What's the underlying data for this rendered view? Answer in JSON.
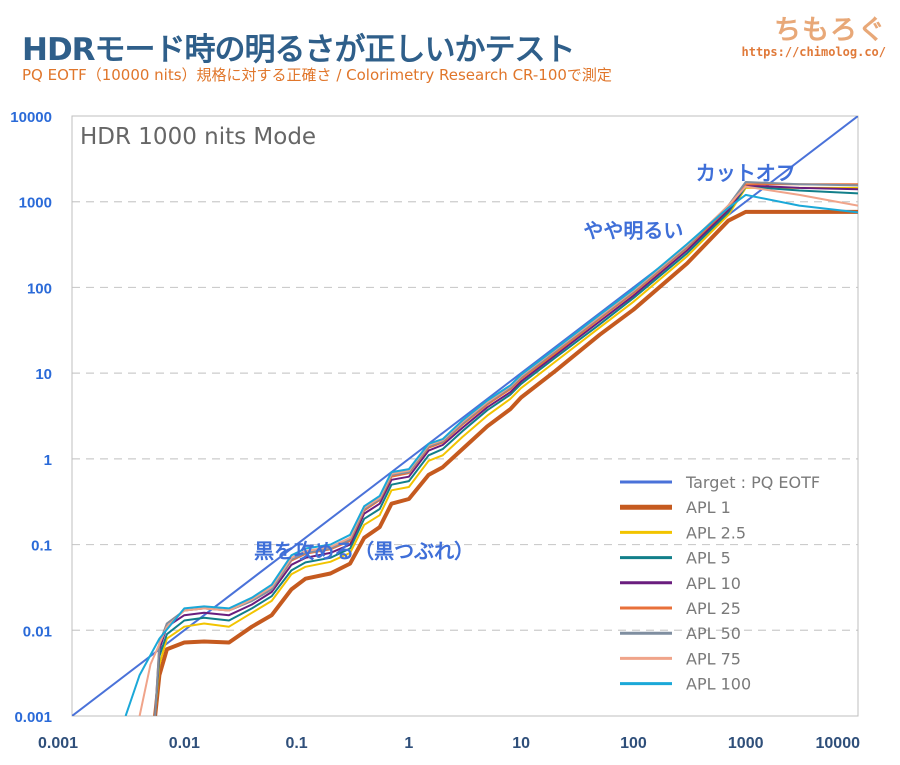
{
  "header": {
    "title": "HDRモード時の明るさが正しいかテスト",
    "subtitle": "PQ EOTF（10000 nits）規格に対する正確さ / Colorimetry Research CR-100で測定",
    "logo_text": "ちもろぐ",
    "logo_url": "https://chimolog.co/"
  },
  "chart_data": {
    "type": "line",
    "title": "HDR 1000 nits Mode",
    "xscale": "log",
    "yscale": "log",
    "xlim": [
      0.001,
      10000
    ],
    "ylim": [
      0.001,
      10000
    ],
    "x_ticks": [
      "0.001",
      "0.01",
      "0.1",
      "1",
      "10",
      "100",
      "1000",
      "10000"
    ],
    "y_ticks": [
      "0.001",
      "0.01",
      "0.1",
      "1",
      "10",
      "100",
      "1000",
      "10000"
    ],
    "grid": "horizontal dashed",
    "legend_position": "bottom-right",
    "annotations": [
      {
        "text": "カットオフ",
        "x": 1000,
        "y": 1800
      },
      {
        "text": "やや明るい",
        "x": 100,
        "y": 380
      },
      {
        "text": "黒を攻める（黒つぶれ）",
        "x": 0.4,
        "y": 0.07
      }
    ],
    "series": [
      {
        "name": "Target : PQ EOTF",
        "color": "#4a72d9",
        "width": 2,
        "points": [
          [
            0.001,
            0.001
          ],
          [
            10000,
            10000
          ]
        ]
      },
      {
        "name": "APL 1",
        "color": "#c55a1f",
        "width": 4,
        "points": [
          [
            0.0055,
            0.001
          ],
          [
            0.006,
            0.003
          ],
          [
            0.007,
            0.006
          ],
          [
            0.01,
            0.0072
          ],
          [
            0.015,
            0.0074
          ],
          [
            0.025,
            0.0072
          ],
          [
            0.04,
            0.011
          ],
          [
            0.06,
            0.015
          ],
          [
            0.09,
            0.03
          ],
          [
            0.12,
            0.04
          ],
          [
            0.2,
            0.046
          ],
          [
            0.3,
            0.06
          ],
          [
            0.4,
            0.12
          ],
          [
            0.55,
            0.16
          ],
          [
            0.7,
            0.3
          ],
          [
            1,
            0.34
          ],
          [
            1.5,
            0.65
          ],
          [
            2,
            0.8
          ],
          [
            3,
            1.3
          ],
          [
            5,
            2.4
          ],
          [
            8,
            3.8
          ],
          [
            10,
            5.2
          ],
          [
            20,
            10.5
          ],
          [
            50,
            28
          ],
          [
            100,
            55
          ],
          [
            300,
            190
          ],
          [
            700,
            600
          ],
          [
            1000,
            760
          ],
          [
            3000,
            760
          ],
          [
            10000,
            760
          ]
        ]
      },
      {
        "name": "APL 2.5",
        "color": "#f2c400",
        "width": 2,
        "points": [
          [
            0.0055,
            0.001
          ],
          [
            0.006,
            0.004
          ],
          [
            0.007,
            0.008
          ],
          [
            0.01,
            0.011
          ],
          [
            0.015,
            0.012
          ],
          [
            0.025,
            0.011
          ],
          [
            0.04,
            0.016
          ],
          [
            0.06,
            0.022
          ],
          [
            0.09,
            0.045
          ],
          [
            0.12,
            0.055
          ],
          [
            0.2,
            0.063
          ],
          [
            0.3,
            0.08
          ],
          [
            0.4,
            0.17
          ],
          [
            0.55,
            0.22
          ],
          [
            0.7,
            0.43
          ],
          [
            1,
            0.47
          ],
          [
            1.5,
            0.95
          ],
          [
            2,
            1.1
          ],
          [
            3,
            1.8
          ],
          [
            5,
            3.2
          ],
          [
            8,
            5
          ],
          [
            10,
            6.7
          ],
          [
            20,
            13.5
          ],
          [
            50,
            34
          ],
          [
            100,
            68
          ],
          [
            300,
            230
          ],
          [
            700,
            700
          ],
          [
            1000,
            1450
          ],
          [
            3000,
            1450
          ],
          [
            10000,
            1450
          ]
        ]
      },
      {
        "name": "APL 5",
        "color": "#127f8a",
        "width": 2,
        "points": [
          [
            0.0055,
            0.001
          ],
          [
            0.006,
            0.005
          ],
          [
            0.007,
            0.009
          ],
          [
            0.01,
            0.013
          ],
          [
            0.015,
            0.014
          ],
          [
            0.025,
            0.013
          ],
          [
            0.04,
            0.018
          ],
          [
            0.06,
            0.025
          ],
          [
            0.09,
            0.05
          ],
          [
            0.12,
            0.062
          ],
          [
            0.2,
            0.07
          ],
          [
            0.3,
            0.09
          ],
          [
            0.4,
            0.2
          ],
          [
            0.55,
            0.26
          ],
          [
            0.7,
            0.5
          ],
          [
            1,
            0.55
          ],
          [
            1.5,
            1.1
          ],
          [
            2,
            1.3
          ],
          [
            3,
            2.1
          ],
          [
            5,
            3.7
          ],
          [
            8,
            5.6
          ],
          [
            10,
            7.5
          ],
          [
            20,
            15
          ],
          [
            50,
            37
          ],
          [
            100,
            75
          ],
          [
            300,
            250
          ],
          [
            700,
            750
          ],
          [
            1000,
            1500
          ],
          [
            3000,
            1350
          ],
          [
            10000,
            1250
          ]
        ]
      },
      {
        "name": "APL 10",
        "color": "#6a1d7e",
        "width": 2,
        "points": [
          [
            0.0055,
            0.001
          ],
          [
            0.006,
            0.006
          ],
          [
            0.007,
            0.011
          ],
          [
            0.01,
            0.015
          ],
          [
            0.015,
            0.016
          ],
          [
            0.025,
            0.015
          ],
          [
            0.04,
            0.02
          ],
          [
            0.06,
            0.028
          ],
          [
            0.09,
            0.058
          ],
          [
            0.12,
            0.07
          ],
          [
            0.2,
            0.08
          ],
          [
            0.3,
            0.1
          ],
          [
            0.4,
            0.23
          ],
          [
            0.55,
            0.3
          ],
          [
            0.7,
            0.57
          ],
          [
            1,
            0.62
          ],
          [
            1.5,
            1.25
          ],
          [
            2,
            1.45
          ],
          [
            3,
            2.3
          ],
          [
            5,
            4
          ],
          [
            8,
            6
          ],
          [
            10,
            8
          ],
          [
            20,
            16
          ],
          [
            50,
            40
          ],
          [
            100,
            80
          ],
          [
            300,
            270
          ],
          [
            700,
            800
          ],
          [
            1000,
            1550
          ],
          [
            3000,
            1450
          ],
          [
            10000,
            1400
          ]
        ]
      },
      {
        "name": "APL 25",
        "color": "#e8703a",
        "width": 2,
        "points": [
          [
            0.0055,
            0.001
          ],
          [
            0.006,
            0.007
          ],
          [
            0.007,
            0.012
          ],
          [
            0.01,
            0.017
          ],
          [
            0.015,
            0.018
          ],
          [
            0.025,
            0.017
          ],
          [
            0.04,
            0.022
          ],
          [
            0.06,
            0.03
          ],
          [
            0.09,
            0.065
          ],
          [
            0.12,
            0.078
          ],
          [
            0.2,
            0.088
          ],
          [
            0.3,
            0.11
          ],
          [
            0.4,
            0.25
          ],
          [
            0.55,
            0.33
          ],
          [
            0.7,
            0.62
          ],
          [
            1,
            0.68
          ],
          [
            1.5,
            1.35
          ],
          [
            2,
            1.55
          ],
          [
            3,
            2.5
          ],
          [
            5,
            4.3
          ],
          [
            8,
            6.5
          ],
          [
            10,
            8.6
          ],
          [
            20,
            17
          ],
          [
            50,
            43
          ],
          [
            100,
            86
          ],
          [
            300,
            290
          ],
          [
            700,
            850
          ],
          [
            1000,
            1600
          ],
          [
            3000,
            1600
          ],
          [
            10000,
            1600
          ]
        ]
      },
      {
        "name": "APL 50",
        "color": "#7f8ea0",
        "width": 2,
        "points": [
          [
            0.0055,
            0.001
          ],
          [
            0.006,
            0.007
          ],
          [
            0.007,
            0.012
          ],
          [
            0.01,
            0.017
          ],
          [
            0.015,
            0.018
          ],
          [
            0.025,
            0.017
          ],
          [
            0.04,
            0.022
          ],
          [
            0.06,
            0.03
          ],
          [
            0.09,
            0.067
          ],
          [
            0.12,
            0.08
          ],
          [
            0.2,
            0.09
          ],
          [
            0.3,
            0.115
          ],
          [
            0.4,
            0.26
          ],
          [
            0.55,
            0.34
          ],
          [
            0.7,
            0.65
          ],
          [
            1,
            0.7
          ],
          [
            1.5,
            1.4
          ],
          [
            2,
            1.6
          ],
          [
            3,
            2.6
          ],
          [
            5,
            4.5
          ],
          [
            8,
            6.8
          ],
          [
            10,
            9
          ],
          [
            20,
            18
          ],
          [
            50,
            45
          ],
          [
            100,
            90
          ],
          [
            300,
            300
          ],
          [
            700,
            900
          ],
          [
            1000,
            1700
          ],
          [
            3000,
            1600
          ],
          [
            10000,
            1550
          ]
        ]
      },
      {
        "name": "APL 75",
        "color": "#f0a48a",
        "width": 2,
        "points": [
          [
            0.004,
            0.001
          ],
          [
            0.005,
            0.004
          ],
          [
            0.007,
            0.011
          ],
          [
            0.01,
            0.017
          ],
          [
            0.015,
            0.018
          ],
          [
            0.025,
            0.017
          ],
          [
            0.04,
            0.023
          ],
          [
            0.06,
            0.032
          ],
          [
            0.09,
            0.07
          ],
          [
            0.12,
            0.084
          ],
          [
            0.2,
            0.094
          ],
          [
            0.3,
            0.12
          ],
          [
            0.4,
            0.27
          ],
          [
            0.55,
            0.35
          ],
          [
            0.7,
            0.67
          ],
          [
            1,
            0.73
          ],
          [
            1.5,
            1.45
          ],
          [
            2,
            1.65
          ],
          [
            3,
            2.7
          ],
          [
            5,
            4.6
          ],
          [
            8,
            7
          ],
          [
            10,
            9.3
          ],
          [
            20,
            18.5
          ],
          [
            50,
            46
          ],
          [
            100,
            92
          ],
          [
            300,
            310
          ],
          [
            700,
            900
          ],
          [
            1000,
            1500
          ],
          [
            3000,
            1200
          ],
          [
            10000,
            900
          ]
        ]
      },
      {
        "name": "APL 100",
        "color": "#1ba8d8",
        "width": 2,
        "points": [
          [
            0.003,
            0.001
          ],
          [
            0.004,
            0.003
          ],
          [
            0.006,
            0.008
          ],
          [
            0.01,
            0.018
          ],
          [
            0.015,
            0.019
          ],
          [
            0.025,
            0.018
          ],
          [
            0.04,
            0.024
          ],
          [
            0.06,
            0.034
          ],
          [
            0.09,
            0.075
          ],
          [
            0.12,
            0.09
          ],
          [
            0.2,
            0.1
          ],
          [
            0.3,
            0.13
          ],
          [
            0.4,
            0.28
          ],
          [
            0.55,
            0.37
          ],
          [
            0.7,
            0.7
          ],
          [
            1,
            0.76
          ],
          [
            1.5,
            1.5
          ],
          [
            2,
            1.7
          ],
          [
            3,
            2.8
          ],
          [
            5,
            4.8
          ],
          [
            8,
            7.2
          ],
          [
            10,
            9.6
          ],
          [
            20,
            19
          ],
          [
            50,
            48
          ],
          [
            100,
            95
          ],
          [
            300,
            320
          ],
          [
            700,
            850
          ],
          [
            1000,
            1200
          ],
          [
            3000,
            900
          ],
          [
            10000,
            750
          ]
        ]
      }
    ]
  }
}
